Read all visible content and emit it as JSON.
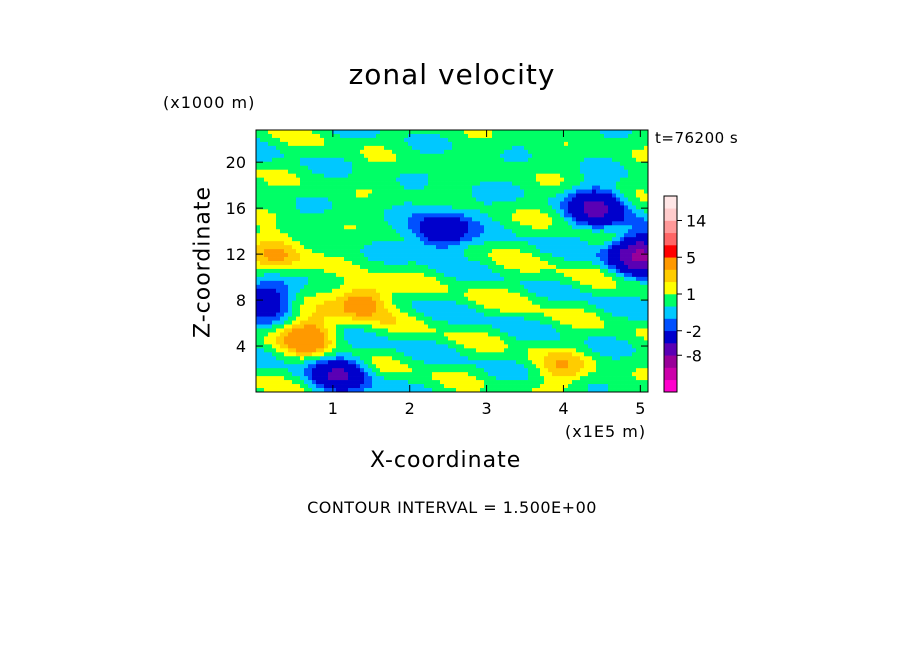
{
  "chart_data": {
    "type": "heatmap",
    "title": "zonal velocity",
    "xlabel": "X-coordinate",
    "ylabel": "Z-coordinate",
    "x_unit": "(x1E5 m)",
    "y_unit": "(x1000 m)",
    "time_label": "t=76200 s",
    "contour_interval_label": "CONTOUR INTERVAL = 1.500E+00",
    "xlim": [
      0,
      5.1
    ],
    "ylim": [
      0,
      22.8
    ],
    "x_ticks": [
      "1",
      "2",
      "3",
      "4",
      "5"
    ],
    "y_ticks": [
      "4",
      "8",
      "12",
      "16",
      "20"
    ],
    "contour_interval": 1.5,
    "colorbar": {
      "tick_labels": [
        "14",
        "5",
        "1",
        "-2",
        "-8"
      ],
      "levels": [
        -14,
        -11,
        -8,
        -5,
        -2,
        -1,
        0,
        1,
        2,
        3,
        5,
        8,
        11,
        14,
        17
      ],
      "colors": [
        "#ff00cc",
        "#cc00aa",
        "#990099",
        "#5a00b4",
        "#0000cc",
        "#0050ff",
        "#00c8ff",
        "#00ff66",
        "#ffff00",
        "#ffcc00",
        "#ff9900",
        "#ff0000",
        "#ff6666",
        "#ff9999",
        "#ffcccc",
        "#ffe6e6"
      ]
    },
    "features": [
      {
        "x": 4.45,
        "z": 16.0,
        "value": -6
      },
      {
        "x": 5.0,
        "z": 12.0,
        "value": -9
      },
      {
        "x": 1.1,
        "z": 1.5,
        "value": -5
      },
      {
        "x": 0.1,
        "z": 8.0,
        "value": -4
      },
      {
        "x": 2.4,
        "z": 14.0,
        "value": -5
      },
      {
        "x": 0.7,
        "z": 5.0,
        "value": 4
      },
      {
        "x": 1.4,
        "z": 8.0,
        "value": 4
      },
      {
        "x": 0.3,
        "z": 12.0,
        "value": 3
      },
      {
        "x": 4.0,
        "z": 2.0,
        "value": 2
      },
      {
        "x": 3.5,
        "z": 9.0,
        "value": 0.5
      },
      {
        "x": 2.8,
        "z": 16.5,
        "value": -0.5
      }
    ]
  }
}
